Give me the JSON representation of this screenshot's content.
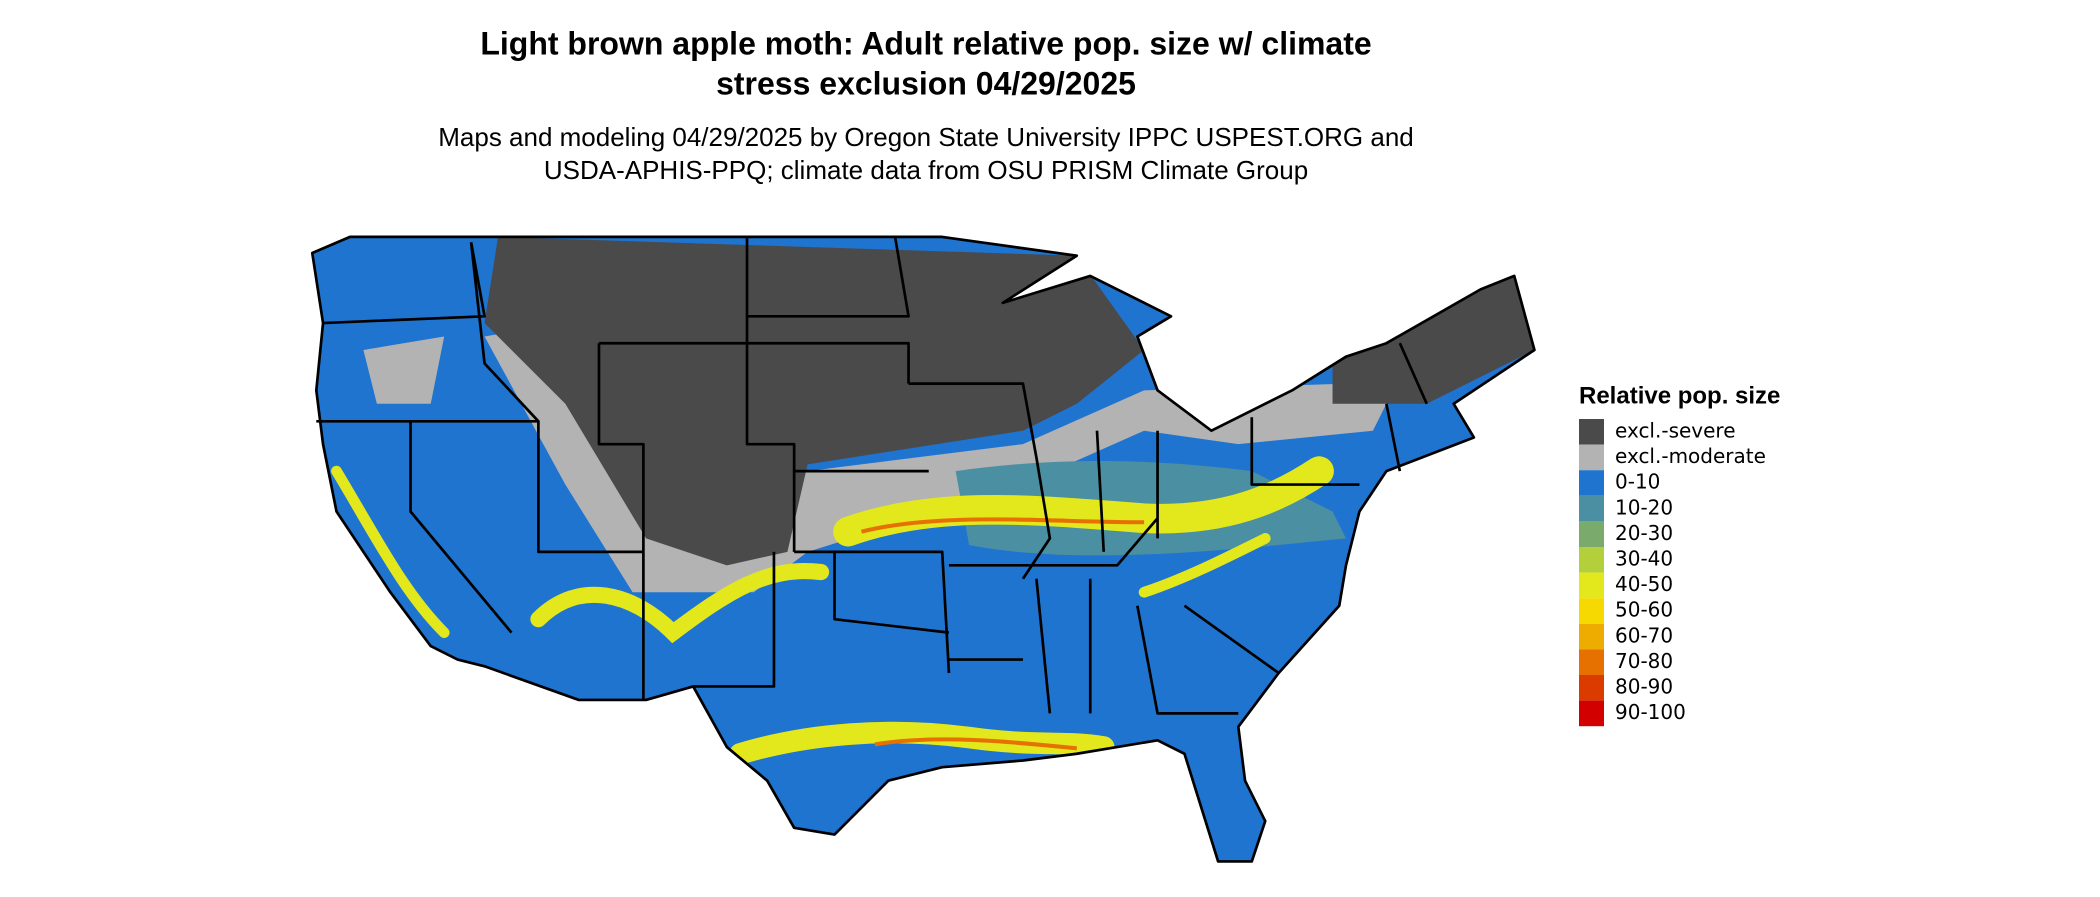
{
  "header": {
    "title": [
      "Light brown apple moth: Adult relative pop. size w/ climate",
      "stress exclusion 04/29/2025"
    ],
    "subtitle": [
      "Maps and modeling 04/29/2025 by Oregon State University IPPC USPEST.ORG and",
      "USDA-APHIS-PPQ; climate data from OSU PRISM Climate Group"
    ]
  },
  "legend": {
    "title": "Relative pop. size",
    "items": [
      {
        "label": "excl.-severe",
        "color": "#4a4a4a"
      },
      {
        "label": "excl.-moderate",
        "color": "#b3b3b3"
      },
      {
        "label": "0-10",
        "color": "#1f74d0"
      },
      {
        "label": "10-20",
        "color": "#4a8fa2"
      },
      {
        "label": "20-30",
        "color": "#7bab6c"
      },
      {
        "label": "30-40",
        "color": "#b4cf3c"
      },
      {
        "label": "40-50",
        "color": "#e3e81c"
      },
      {
        "label": "50-60",
        "color": "#f5d900"
      },
      {
        "label": "60-70",
        "color": "#eeab00"
      },
      {
        "label": "70-80",
        "color": "#e77100"
      },
      {
        "label": "80-90",
        "color": "#dc3b00"
      },
      {
        "label": "90-100",
        "color": "#d30000"
      }
    ]
  }
}
